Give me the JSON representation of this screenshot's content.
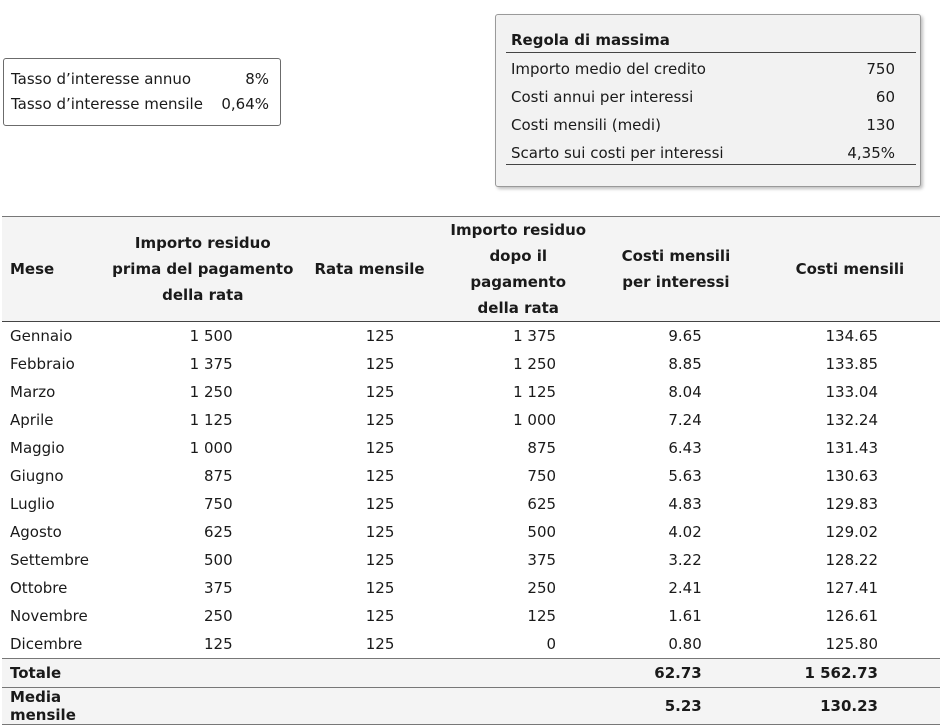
{
  "rates": [
    {
      "label": "Tasso d’interesse annuo",
      "value": "8%"
    },
    {
      "label": "Tasso d’interesse mensile",
      "value": "0,64%"
    }
  ],
  "rule": {
    "title": "Regola di massima",
    "rows": [
      {
        "label": "Importo medio del credito",
        "value": "750"
      },
      {
        "label": "Costi annui per interessi",
        "value": "60"
      },
      {
        "label": "Costi mensili (medi)",
        "value": "130"
      },
      {
        "label": "Scarto sui costi per interessi",
        "value": "4,35%"
      }
    ]
  },
  "table": {
    "headers": [
      [
        "Mese"
      ],
      [
        "Importo residuo",
        "prima del pagamento",
        "della rata"
      ],
      [
        "Rata mensile"
      ],
      [
        "Importo residuo",
        "dopo il pagamento",
        "della rata"
      ],
      [
        "Costi mensili",
        "per interessi"
      ],
      [
        "Costi mensili"
      ]
    ],
    "rows": [
      [
        "Gennaio",
        "1 500",
        "125",
        "1 375",
        "9.65",
        "134.65"
      ],
      [
        "Febbraio",
        "1 375",
        "125",
        "1 250",
        "8.85",
        "133.85"
      ],
      [
        "Marzo",
        "1 250",
        "125",
        "1 125",
        "8.04",
        "133.04"
      ],
      [
        "Aprile",
        "1 125",
        "125",
        "1 000",
        "7.24",
        "132.24"
      ],
      [
        "Maggio",
        "1 000",
        "125",
        "875",
        "6.43",
        "131.43"
      ],
      [
        "Giugno",
        "875",
        "125",
        "750",
        "5.63",
        "130.63"
      ],
      [
        "Luglio",
        "750",
        "125",
        "625",
        "4.83",
        "129.83"
      ],
      [
        "Agosto",
        "625",
        "125",
        "500",
        "4.02",
        "129.02"
      ],
      [
        "Settembre",
        "500",
        "125",
        "375",
        "3.22",
        "128.22"
      ],
      [
        "Ottobre",
        "375",
        "125",
        "250",
        "2.41",
        "127.41"
      ],
      [
        "Novembre",
        "250",
        "125",
        "125",
        "1.61",
        "126.61"
      ],
      [
        "Dicembre",
        "125",
        "125",
        "0",
        "0.80",
        "125.80"
      ]
    ],
    "total": {
      "label": "Totale",
      "interest": "62.73",
      "costs": "1 562.73"
    },
    "average": {
      "label": "Media mensile",
      "interest": "5.23",
      "costs": "130.23"
    }
  }
}
